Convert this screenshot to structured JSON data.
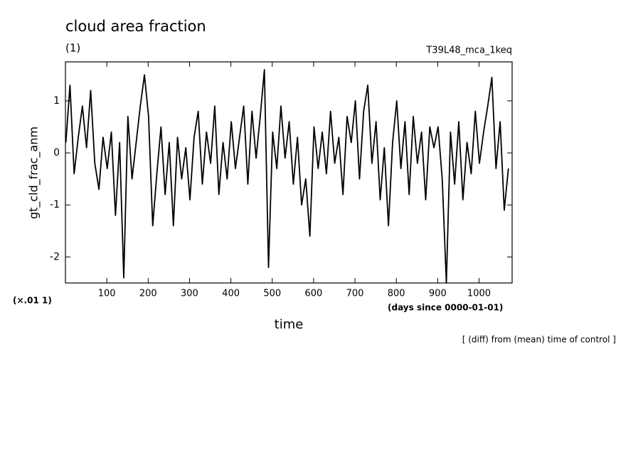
{
  "chart_data": {
    "type": "line",
    "title": "cloud area fraction",
    "subtitle": "(1)",
    "run_label": "T39L48_mca_1keq",
    "y_label": "gt_cld_frac_anm",
    "y_unit_label": "(×.01 1)",
    "x_unit_label": "(days since 0000-01-01)",
    "x_label": "time",
    "note": "[ (diff) from (mean) time of control ]",
    "xlim": [
      0,
      1080
    ],
    "ylim": [
      -2.5,
      1.75
    ],
    "xticks": [
      100,
      200,
      300,
      400,
      500,
      600,
      700,
      800,
      900,
      1000
    ],
    "yticks": [
      -2,
      -1,
      0,
      1
    ],
    "x": [
      1,
      11,
      21,
      31,
      41,
      51,
      61,
      71,
      81,
      91,
      101,
      111,
      121,
      131,
      141,
      151,
      161,
      171,
      181,
      191,
      201,
      211,
      221,
      231,
      241,
      251,
      261,
      271,
      281,
      291,
      301,
      311,
      321,
      331,
      341,
      351,
      361,
      371,
      381,
      391,
      401,
      411,
      421,
      431,
      441,
      451,
      461,
      471,
      481,
      491,
      501,
      511,
      521,
      531,
      541,
      551,
      561,
      571,
      581,
      591,
      601,
      611,
      621,
      631,
      641,
      651,
      661,
      671,
      681,
      691,
      701,
      711,
      721,
      731,
      741,
      751,
      761,
      771,
      781,
      791,
      801,
      811,
      821,
      831,
      841,
      851,
      861,
      871,
      881,
      891,
      901,
      911,
      921,
      931,
      941,
      951,
      961,
      971,
      981,
      991,
      1001,
      1011,
      1021,
      1031,
      1041,
      1051,
      1061,
      1071
    ],
    "series": [
      {
        "color": "#000000",
        "values": [
          0.2,
          1.3,
          -0.4,
          0.3,
          0.9,
          0.1,
          1.2,
          -0.2,
          -0.7,
          0.3,
          -0.3,
          0.4,
          -1.2,
          0.2,
          -2.4,
          0.7,
          -0.5,
          0.2,
          0.9,
          1.5,
          0.7,
          -1.4,
          -0.4,
          0.5,
          -0.8,
          0.2,
          -1.4,
          0.3,
          -0.5,
          0.1,
          -0.9,
          0.3,
          0.8,
          -0.6,
          0.4,
          -0.2,
          0.9,
          -0.8,
          0.2,
          -0.5,
          0.6,
          -0.3,
          0.3,
          0.9,
          -0.6,
          0.8,
          -0.1,
          0.7,
          1.6,
          -2.2,
          0.4,
          -0.3,
          0.9,
          -0.1,
          0.6,
          -0.6,
          0.3,
          -1.0,
          -0.5,
          -1.6,
          0.5,
          -0.3,
          0.4,
          -0.4,
          0.8,
          -0.2,
          0.3,
          -0.8,
          0.7,
          0.2,
          1.0,
          -0.5,
          0.8,
          1.3,
          -0.2,
          0.6,
          -0.9,
          0.1,
          -1.4,
          0.2,
          1.0,
          -0.3,
          0.6,
          -0.8,
          0.7,
          -0.2,
          0.4,
          -0.9,
          0.5,
          0.1,
          0.5,
          -0.5,
          -2.5,
          0.4,
          -0.6,
          0.6,
          -0.9,
          0.2,
          -0.4,
          0.8,
          -0.2,
          0.4,
          0.9,
          1.45,
          -0.3,
          0.6,
          -1.1,
          -0.3
        ]
      }
    ]
  }
}
